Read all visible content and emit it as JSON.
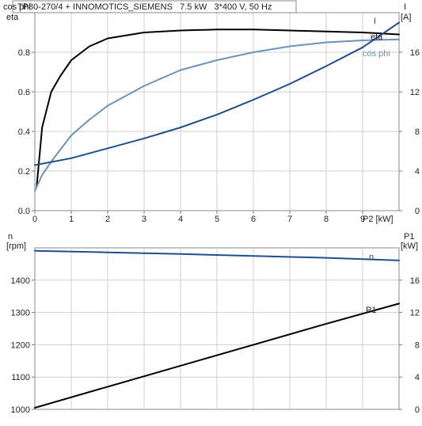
{
  "chart_data": [
    {
      "type": "line",
      "title": "TP80-270/4 + INNOMOTICS_SIEMENS   7.5 kW   3*400 V, 50 Hz",
      "xlabel": "P2 [kW]",
      "ylabel_left": [
        "cos phi",
        "eta"
      ],
      "ylabel_right": [
        "I",
        "[A]"
      ],
      "xlim": [
        0,
        10
      ],
      "ylim_left": [
        0,
        1
      ],
      "ylim_right": [
        0,
        20
      ],
      "x_ticks": [
        "0",
        "1",
        "2",
        "3",
        "4",
        "5",
        "6",
        "7",
        "8",
        "9"
      ],
      "y_left_ticks": [
        "0.0",
        "0.2",
        "0.4",
        "0.6",
        "0.8"
      ],
      "y_right_ticks": [
        "0",
        "4",
        "8",
        "12",
        "16"
      ],
      "grid": true,
      "series": [
        {
          "name": "eta",
          "axis": "left",
          "color": "#000000",
          "points": [
            [
              0.05,
              0.12
            ],
            [
              0.2,
              0.42
            ],
            [
              0.45,
              0.6
            ],
            [
              0.7,
              0.68
            ],
            [
              1.0,
              0.76
            ],
            [
              1.5,
              0.83
            ],
            [
              2.0,
              0.87
            ],
            [
              3.0,
              0.9
            ],
            [
              4.0,
              0.91
            ],
            [
              5.0,
              0.915
            ],
            [
              6.0,
              0.915
            ],
            [
              7.0,
              0.91
            ],
            [
              8.0,
              0.905
            ],
            [
              9.0,
              0.9
            ],
            [
              10.0,
              0.89
            ]
          ]
        },
        {
          "name": "cos phi",
          "axis": "left",
          "color": "#6a94b8",
          "points": [
            [
              0.0,
              0.1
            ],
            [
              0.2,
              0.18
            ],
            [
              0.5,
              0.26
            ],
            [
              1.0,
              0.38
            ],
            [
              1.5,
              0.46
            ],
            [
              2.0,
              0.53
            ],
            [
              3.0,
              0.63
            ],
            [
              4.0,
              0.71
            ],
            [
              5.0,
              0.76
            ],
            [
              6.0,
              0.8
            ],
            [
              7.0,
              0.83
            ],
            [
              8.0,
              0.85
            ],
            [
              9.0,
              0.86
            ],
            [
              10.0,
              0.865
            ]
          ]
        },
        {
          "name": "I",
          "axis": "right",
          "color": "#1f4e8c",
          "points": [
            [
              0.0,
              4.6
            ],
            [
              1.0,
              5.3
            ],
            [
              2.0,
              6.3
            ],
            [
              3.0,
              7.3
            ],
            [
              4.0,
              8.4
            ],
            [
              5.0,
              9.7
            ],
            [
              6.0,
              11.2
            ],
            [
              7.0,
              12.8
            ],
            [
              8.0,
              14.6
            ],
            [
              9.0,
              16.5
            ],
            [
              10.0,
              19.0
            ]
          ]
        }
      ]
    },
    {
      "type": "line",
      "xlabel": "",
      "ylabel_left": [
        "n",
        "[rpm]"
      ],
      "ylabel_right": [
        "P1",
        "[kW]"
      ],
      "xlim": [
        0,
        10
      ],
      "ylim_left": [
        1000,
        1500
      ],
      "ylim_right": [
        0,
        20
      ],
      "y_left_ticks": [
        "1000",
        "1100",
        "1200",
        "1300",
        "1400"
      ],
      "y_right_ticks": [
        "0",
        "4",
        "8",
        "12",
        "16"
      ],
      "grid": true,
      "series": [
        {
          "name": "n",
          "axis": "left",
          "color": "#1f4e8c",
          "points": [
            [
              0.0,
              1491
            ],
            [
              2.0,
              1486
            ],
            [
              4.0,
              1481
            ],
            [
              6.0,
              1475
            ],
            [
              8.0,
              1469
            ],
            [
              10.0,
              1461
            ]
          ]
        },
        {
          "name": "P1",
          "axis": "right",
          "color": "#000000",
          "points": [
            [
              0.0,
              0.2
            ],
            [
              2.0,
              2.8
            ],
            [
              4.0,
              5.4
            ],
            [
              6.0,
              8.0
            ],
            [
              8.0,
              10.6
            ],
            [
              10.0,
              13.1
            ]
          ]
        }
      ]
    }
  ]
}
